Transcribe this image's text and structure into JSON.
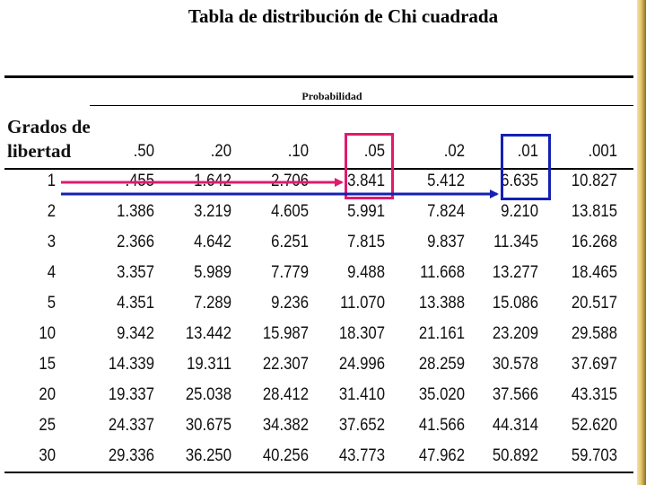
{
  "title": "Tabla de distribución de Chi cuadrada",
  "probability_label": "Probabilidad",
  "df_header_line1": "Grados de",
  "df_header_line2": "libertad",
  "columns": [
    ".50",
    ".20",
    ".10",
    ".05",
    ".02",
    ".01",
    ".001"
  ],
  "rows": [
    {
      "df": "1",
      "values": [
        ".455",
        "1.642",
        "2.706",
        "3.841",
        "5.412",
        "6.635",
        "10.827"
      ]
    },
    {
      "df": "2",
      "values": [
        "1.386",
        "3.219",
        "4.605",
        "5.991",
        "7.824",
        "9.210",
        "13.815"
      ]
    },
    {
      "df": "3",
      "values": [
        "2.366",
        "4.642",
        "6.251",
        "7.815",
        "9.837",
        "11.345",
        "16.268"
      ]
    },
    {
      "df": "4",
      "values": [
        "3.357",
        "5.989",
        "7.779",
        "9.488",
        "11.668",
        "13.277",
        "18.465"
      ]
    },
    {
      "df": "5",
      "values": [
        "4.351",
        "7.289",
        "9.236",
        "11.070",
        "13.388",
        "15.086",
        "20.517"
      ]
    },
    {
      "df": "10",
      "values": [
        "9.342",
        "13.442",
        "15.987",
        "18.307",
        "21.161",
        "23.209",
        "29.588"
      ]
    },
    {
      "df": "15",
      "values": [
        "14.339",
        "19.311",
        "22.307",
        "24.996",
        "28.259",
        "30.578",
        "37.697"
      ]
    },
    {
      "df": "20",
      "values": [
        "19.337",
        "25.038",
        "28.412",
        "31.410",
        "35.020",
        "37.566",
        "43.315"
      ]
    },
    {
      "df": "25",
      "values": [
        "24.337",
        "30.675",
        "34.382",
        "37.652",
        "41.566",
        "44.314",
        "52.620"
      ]
    },
    {
      "df": "30",
      "values": [
        "29.336",
        "36.250",
        "40.256",
        "43.773",
        "47.962",
        "50.892",
        "59.703"
      ]
    }
  ],
  "highlights": {
    "pink_color": "#e01a6e",
    "blue_color": "#1420b3",
    "pink_column": ".05",
    "blue_column": ".01"
  }
}
